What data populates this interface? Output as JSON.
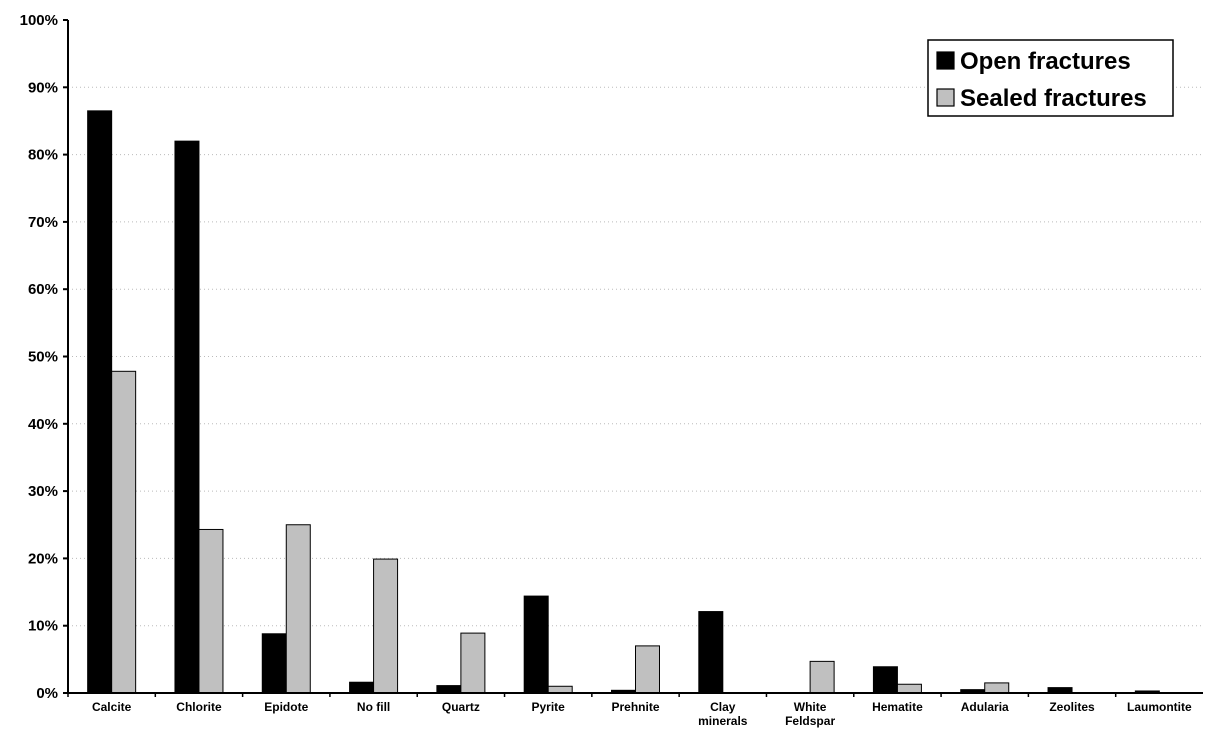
{
  "chart_data": {
    "type": "bar",
    "title": "",
    "xlabel": "",
    "ylabel": "",
    "ylim": [
      0,
      100
    ],
    "y_ticks": [
      "0%",
      "10%",
      "20%",
      "30%",
      "40%",
      "50%",
      "60%",
      "70%",
      "80%",
      "90%",
      "100%"
    ],
    "grid": "horizontal dotted",
    "legend_position": "top-right",
    "categories": [
      [
        "Calcite"
      ],
      [
        "Chlorite"
      ],
      [
        "Epidote"
      ],
      [
        "No fill"
      ],
      [
        "Quartz"
      ],
      [
        "Pyrite"
      ],
      [
        "Prehnite"
      ],
      [
        "Clay",
        "minerals"
      ],
      [
        "White",
        "Feldspar"
      ],
      [
        "Hematite"
      ],
      [
        "Adularia"
      ],
      [
        "Zeolites"
      ],
      [
        "Laumontite"
      ]
    ],
    "series": [
      {
        "name": "Open fractures",
        "color": "#000000",
        "values": [
          86.5,
          82,
          8.8,
          1.6,
          1.1,
          14.4,
          0.4,
          12.1,
          0,
          3.9,
          0.5,
          0.8,
          0.3
        ]
      },
      {
        "name": "Sealed fractures",
        "color": "#c0c0c0",
        "values": [
          47.8,
          24.3,
          25,
          19.9,
          8.9,
          1,
          7,
          0,
          4.7,
          1.3,
          1.5,
          0,
          0
        ]
      }
    ]
  }
}
